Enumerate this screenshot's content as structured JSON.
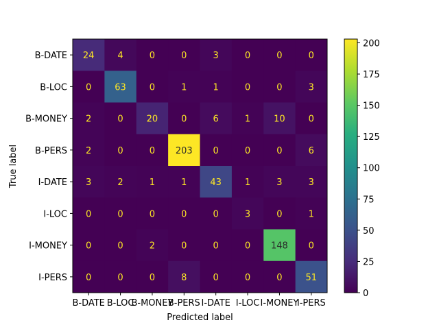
{
  "chart_data": {
    "type": "heatmap",
    "xlabel": "Predicted label",
    "ylabel": "True label",
    "x_categories": [
      "B-DATE",
      "B-LOC",
      "B-MONEY",
      "B-PERS",
      "I-DATE",
      "I-LOC",
      "I-MONEY",
      "I-PERS"
    ],
    "y_categories": [
      "B-DATE",
      "B-LOC",
      "B-MONEY",
      "B-PERS",
      "I-DATE",
      "I-LOC",
      "I-MONEY",
      "I-PERS"
    ],
    "matrix": [
      [
        24,
        4,
        0,
        0,
        3,
        0,
        0,
        0
      ],
      [
        0,
        63,
        0,
        1,
        1,
        0,
        0,
        3
      ],
      [
        2,
        0,
        20,
        0,
        6,
        1,
        10,
        0
      ],
      [
        2,
        0,
        0,
        203,
        0,
        0,
        0,
        6
      ],
      [
        3,
        2,
        1,
        1,
        43,
        1,
        3,
        3
      ],
      [
        0,
        0,
        0,
        0,
        0,
        3,
        0,
        1
      ],
      [
        0,
        0,
        2,
        0,
        0,
        0,
        148,
        0
      ],
      [
        0,
        0,
        0,
        8,
        0,
        0,
        0,
        51
      ]
    ],
    "colormap": "viridis",
    "colorbar_range": [
      0,
      203
    ],
    "colorbar_ticks": [
      0,
      25,
      50,
      75,
      100,
      125,
      150,
      175,
      200
    ]
  }
}
